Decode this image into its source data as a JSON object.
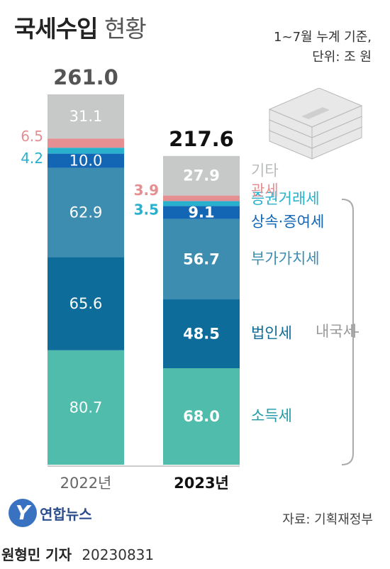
{
  "header": {
    "title_bold": "국세수입",
    "title_light": "현황",
    "note_period": "1~7월 누계 기준,",
    "note_unit": "단위: 조 원"
  },
  "chart_data": {
    "type": "stacked-bar",
    "categories": [
      "2022년",
      "2023년"
    ],
    "totals": [
      "261.0",
      "217.6"
    ],
    "series": [
      {
        "name": "소득세",
        "values": [
          80.7,
          68.0
        ],
        "color": "#4fbcac"
      },
      {
        "name": "법인세",
        "values": [
          65.6,
          48.5
        ],
        "color": "#0d6c9a"
      },
      {
        "name": "부가가치세",
        "values": [
          62.9,
          56.7
        ],
        "color": "#3d8db0"
      },
      {
        "name": "상속·증여세",
        "values": [
          10.0,
          9.1
        ],
        "color": "#1266b4"
      },
      {
        "name": "증권거래세",
        "values": [
          4.2,
          3.5
        ],
        "color": "#28b0cc"
      },
      {
        "name": "관세",
        "values": [
          6.5,
          3.9
        ],
        "color": "#e58f92"
      },
      {
        "name": "기타",
        "values": [
          31.1,
          27.9
        ],
        "color": "#c7c9c9"
      }
    ],
    "domestic_tax_label": "내국세"
  },
  "footer": {
    "source": "자료: 기획재정부",
    "logo_mark": "Y",
    "logo_text": "연합뉴스",
    "reporter": "원형민 기자",
    "date": "20230831"
  },
  "colors": {
    "label_tax": "#1d9aa6",
    "label_corp": "#0d6c9a",
    "label_inherit": "#1266b4",
    "label_vat": "#3d8db0",
    "label_sec": "#28b0cc",
    "label_customs": "#e58f92",
    "label_other": "#b9bbbb"
  }
}
